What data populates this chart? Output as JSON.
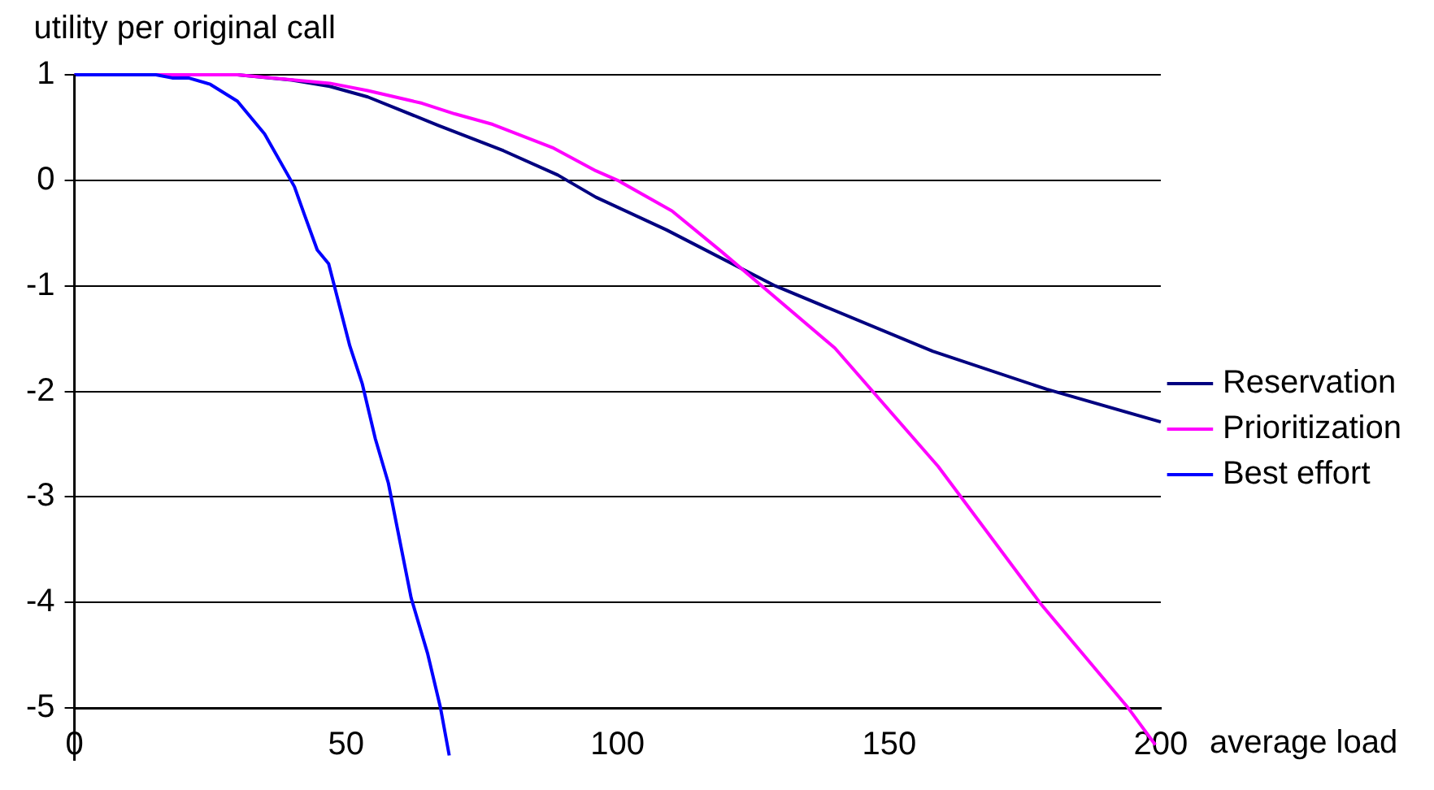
{
  "chart_data": {
    "type": "line",
    "xlabel": "average load",
    "ylabel": "utility per original call",
    "xlim": [
      0,
      200
    ],
    "xticks": [
      0,
      50,
      100,
      150,
      200
    ],
    "ylim": [
      -5.5,
      1
    ],
    "yticks": [
      -5,
      -4,
      -3,
      -2,
      -1,
      0,
      1
    ],
    "grid": "y",
    "legend": "right",
    "marker": "none",
    "line_style": "solid",
    "series": [
      {
        "name": "Reservation",
        "color": "#000080",
        "x": [
          0,
          30,
          40,
          47,
          54,
          67,
          79,
          89,
          96,
          109,
          129,
          158,
          179,
          200
        ],
        "values": [
          1,
          1,
          0.95,
          0.89,
          0.79,
          0.52,
          0.28,
          0.05,
          -0.16,
          -0.47,
          -1.0,
          -1.62,
          -1.98,
          -2.29
        ]
      },
      {
        "name": "Prioritization",
        "color": "#ff00ff",
        "x": [
          0,
          30,
          47,
          54,
          64,
          70,
          77,
          88,
          96,
          100,
          110,
          119,
          140,
          159,
          178,
          194,
          199
        ],
        "values": [
          1,
          1,
          0.92,
          0.85,
          0.73,
          0.63,
          0.53,
          0.31,
          0.09,
          0.0,
          -0.29,
          -0.67,
          -1.59,
          -2.71,
          -4.02,
          -5.0,
          -5.35
        ]
      },
      {
        "name": "Best effort",
        "color": "#0000ff",
        "x": [
          0,
          15,
          18,
          21,
          25,
          30,
          35,
          40.5,
          42.3,
          44.7,
          46.8,
          50.7,
          53,
          55.4,
          57.8,
          62,
          65,
          67.4,
          69
        ],
        "values": [
          1,
          1,
          0.97,
          0.97,
          0.91,
          0.75,
          0.44,
          -0.06,
          -0.32,
          -0.66,
          -0.79,
          -1.57,
          -1.93,
          -2.45,
          -2.87,
          -3.96,
          -4.48,
          -5.0,
          -5.45
        ]
      }
    ]
  }
}
